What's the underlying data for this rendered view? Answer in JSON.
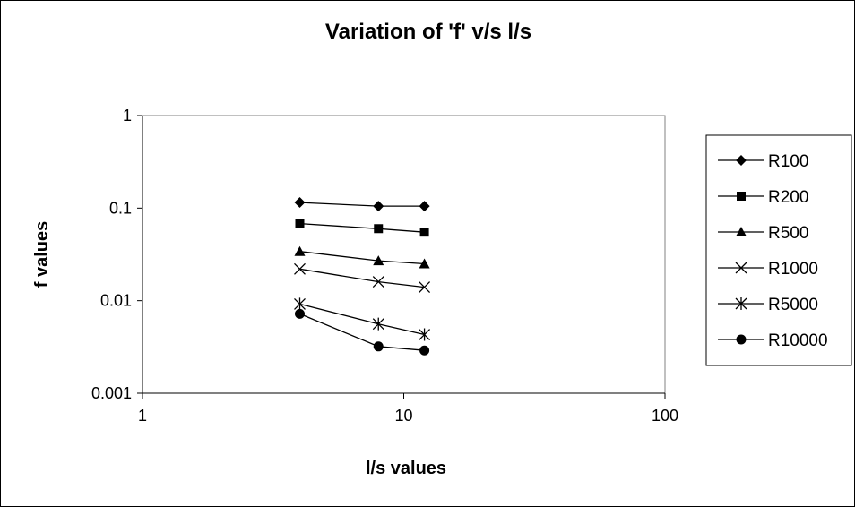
{
  "chart_data": {
    "type": "line",
    "title": "Variation of 'f' v/s l/s",
    "xlabel": "l/s values",
    "ylabel": "f values",
    "xscale": "log",
    "yscale": "log",
    "xlim": [
      1,
      100
    ],
    "ylim": [
      0.001,
      1
    ],
    "x_ticks": [
      "1",
      "10",
      "100"
    ],
    "y_ticks": [
      "1",
      "0.1",
      "0.01",
      "0.001"
    ],
    "grid": false,
    "legend_position": "right",
    "x": [
      4,
      8,
      12
    ],
    "series": [
      {
        "name": "R100",
        "marker": "diamond",
        "values": [
          0.115,
          0.105,
          0.105
        ]
      },
      {
        "name": "R200",
        "marker": "square",
        "values": [
          0.068,
          0.06,
          0.055
        ]
      },
      {
        "name": "R500",
        "marker": "triangle",
        "values": [
          0.034,
          0.027,
          0.025
        ]
      },
      {
        "name": "R1000",
        "marker": "x",
        "values": [
          0.022,
          0.016,
          0.014
        ]
      },
      {
        "name": "R5000",
        "marker": "star",
        "values": [
          0.0092,
          0.0056,
          0.0043
        ]
      },
      {
        "name": "R10000",
        "marker": "circle",
        "values": [
          0.0072,
          0.0032,
          0.0029
        ]
      }
    ],
    "colors": {
      "line": "#000000",
      "plot_border": "#808080",
      "background": "#ffffff"
    }
  }
}
